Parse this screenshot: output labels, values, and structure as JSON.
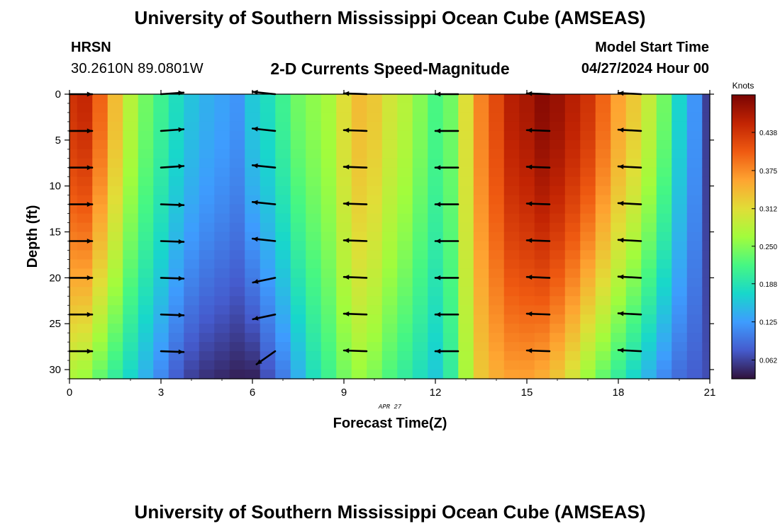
{
  "header": {
    "title": "University of Southern Mississippi Ocean Cube (AMSEAS)",
    "station": "HRSN",
    "coords": "30.2610N  89.0801W",
    "subtitle": "2-D Currents Speed-Magnitude",
    "start_label": "Model Start Time",
    "start_value": "04/27/2024 Hour 00"
  },
  "footer": {
    "title": "University of Southern Mississippi Ocean Cube (AMSEAS)"
  },
  "chart_data": {
    "type": "heatmap",
    "title": "2-D Currents Speed-Magnitude",
    "xlabel": "Forecast Time(Z)",
    "ylabel": "Depth (ft)",
    "date_label": "APR 27",
    "xlim": [
      0,
      21
    ],
    "ylim": [
      31,
      0
    ],
    "xticks": [
      0,
      3,
      6,
      9,
      12,
      15,
      18,
      21
    ],
    "yticks": [
      0,
      5,
      10,
      15,
      20,
      25,
      30
    ],
    "colorbar": {
      "label": "Knots",
      "min": 0.031,
      "max": 0.5,
      "ticks": [
        0.062,
        0.125,
        0.188,
        0.25,
        0.312,
        0.375,
        0.438
      ],
      "tick_labels": [
        "0.062",
        "0.125",
        "0.188",
        "0.250",
        "0.312",
        "0.375",
        "0.438"
      ],
      "colormap": "turbo"
    },
    "time_hours": [
      0,
      0.5,
      1,
      1.5,
      2,
      2.5,
      3,
      3.5,
      4,
      4.5,
      5,
      5.5,
      6,
      6.5,
      7,
      7.5,
      8,
      8.5,
      9,
      9.5,
      10,
      10.5,
      11,
      11.5,
      12,
      12.5,
      13,
      13.5,
      14,
      14.5,
      15,
      15.5,
      16,
      16.5,
      17,
      17.5,
      18,
      18.5,
      19,
      19.5,
      20,
      20.5,
      21
    ],
    "surface_speed_knots": [
      0.44,
      0.45,
      0.4,
      0.34,
      0.28,
      0.24,
      0.21,
      0.18,
      0.155,
      0.14,
      0.13,
      0.12,
      0.16,
      0.18,
      0.21,
      0.24,
      0.255,
      0.27,
      0.31,
      0.34,
      0.33,
      0.3,
      0.28,
      0.25,
      0.22,
      0.24,
      0.31,
      0.38,
      0.42,
      0.46,
      0.47,
      0.49,
      0.48,
      0.46,
      0.44,
      0.4,
      0.36,
      0.33,
      0.29,
      0.24,
      0.17,
      0.12,
      0.06
    ],
    "bottom_speed_knots": [
      0.27,
      0.26,
      0.23,
      0.2,
      0.17,
      0.14,
      0.11,
      0.08,
      0.06,
      0.05,
      0.045,
      0.04,
      0.04,
      0.07,
      0.1,
      0.14,
      0.18,
      0.21,
      0.24,
      0.26,
      0.245,
      0.22,
      0.2,
      0.18,
      0.16,
      0.2,
      0.27,
      0.33,
      0.35,
      0.36,
      0.36,
      0.35,
      0.33,
      0.3,
      0.26,
      0.23,
      0.2,
      0.17,
      0.14,
      0.11,
      0.09,
      0.08,
      0.07
    ],
    "arrows": {
      "times": [
        0,
        3,
        6,
        9,
        12,
        15,
        18
      ],
      "depths": [
        0,
        4,
        8,
        12,
        16,
        20,
        24,
        28
      ],
      "direction": [
        "east",
        "east",
        "west",
        "west",
        "west",
        "west",
        "west"
      ]
    }
  }
}
